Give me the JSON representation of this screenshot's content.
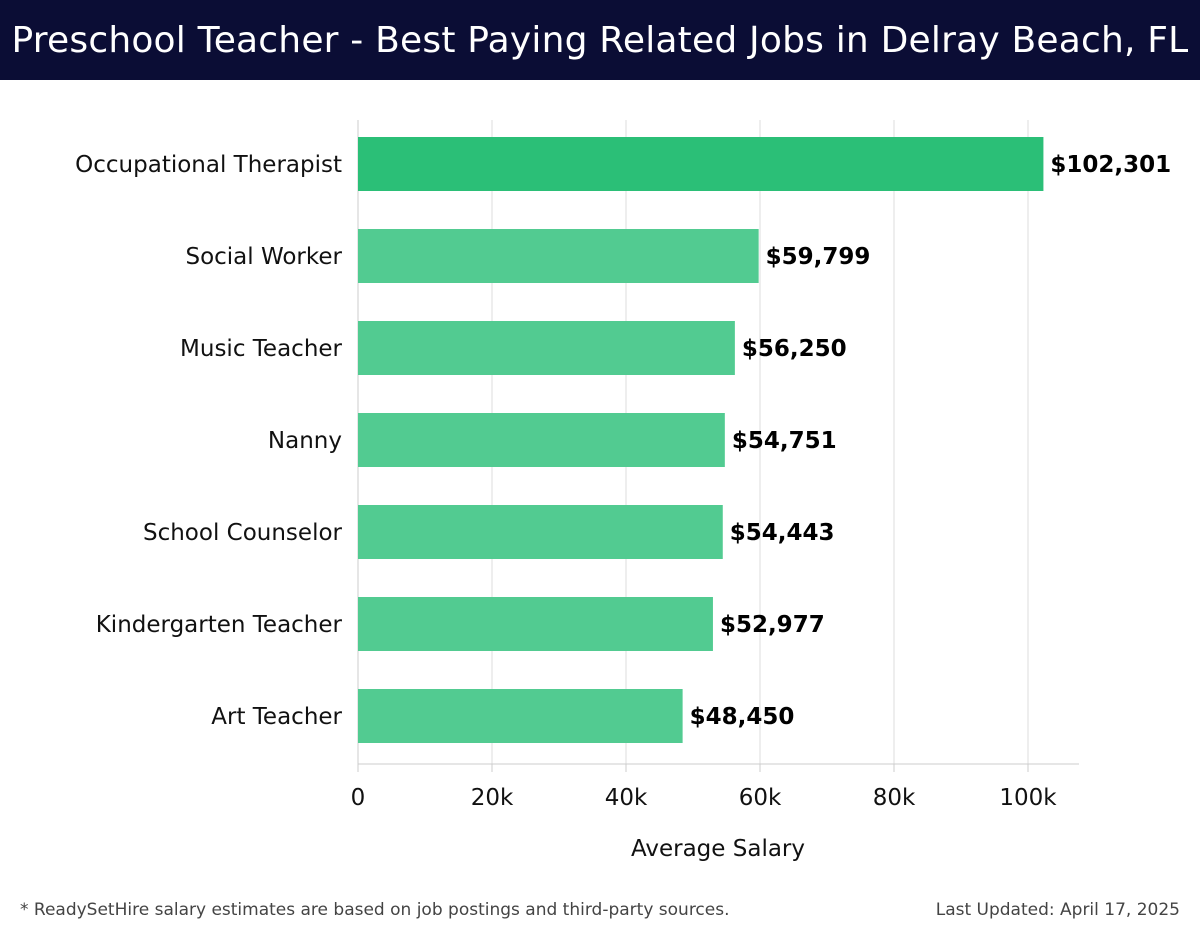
{
  "chart_data": {
    "type": "bar",
    "orientation": "horizontal",
    "title": "Preschool Teacher - Best Paying Related Jobs in Delray Beach, FL",
    "categories": [
      "Occupational Therapist",
      "Social Worker",
      "Music Teacher",
      "Nanny",
      "School Counselor",
      "Kindergarten Teacher",
      "Art Teacher"
    ],
    "values": [
      102301,
      59799,
      56250,
      54751,
      54443,
      52977,
      48450
    ],
    "value_labels": [
      "$102,301",
      "$59,799",
      "$56,250",
      "$54,751",
      "$54,443",
      "$52,977",
      "$48,450"
    ],
    "xlabel": "Average Salary",
    "ylabel": "",
    "xlim": [
      0,
      107000
    ],
    "xticks": [
      0,
      20000,
      40000,
      60000,
      80000,
      100000
    ],
    "xtick_labels": [
      "0",
      "20k",
      "40k",
      "60k",
      "80k",
      "100k"
    ],
    "grid": true,
    "colors": {
      "highlight_bar": "#2bbf77",
      "bar": "#52cb91",
      "grid": "#dddddd",
      "axis": "#cccccc"
    }
  },
  "footer": {
    "note": "* ReadySetHire salary estimates are based on job postings and third-party sources.",
    "updated": "Last Updated: April 17, 2025"
  }
}
